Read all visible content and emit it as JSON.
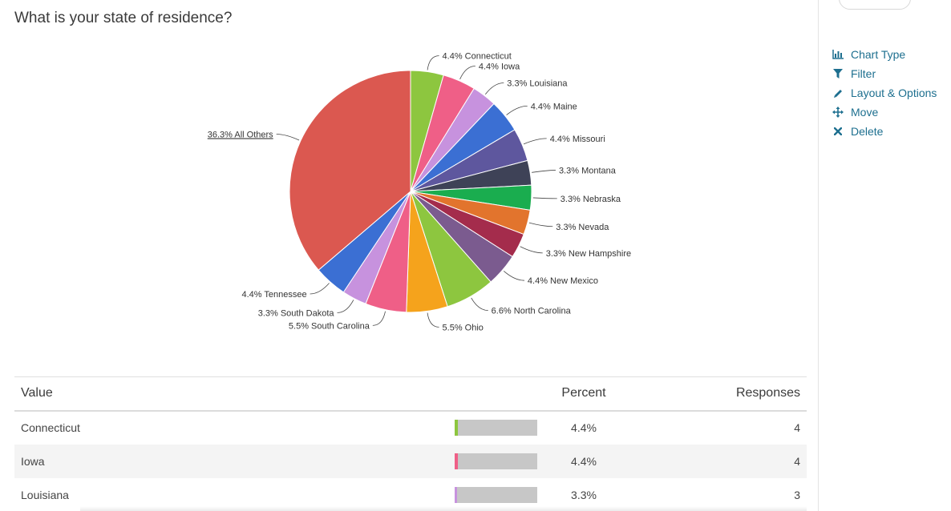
{
  "question": {
    "title": "What is your state of residence?"
  },
  "side_menu": [
    {
      "label": "Chart Type",
      "icon": "bar-chart-icon"
    },
    {
      "label": "Filter",
      "icon": "funnel-icon"
    },
    {
      "label": "Layout & Options",
      "icon": "pencil-icon"
    },
    {
      "label": "Move",
      "icon": "move-arrows-icon"
    },
    {
      "label": "Delete",
      "icon": "x-icon"
    }
  ],
  "chart_data": {
    "type": "pie",
    "title": "What is your state of residence?",
    "start": "top",
    "direction": "clockwise",
    "slices": [
      {
        "label": "Connecticut",
        "value": 4.4,
        "text": "4.4% Connecticut",
        "color": "#8dc63f"
      },
      {
        "label": "Iowa",
        "value": 4.4,
        "text": "4.4% Iowa",
        "color": "#ef5f87"
      },
      {
        "label": "Louisiana",
        "value": 3.3,
        "text": "3.3% Louisiana",
        "color": "#c792de"
      },
      {
        "label": "Maine",
        "value": 4.4,
        "text": "4.4% Maine",
        "color": "#3b6fd3"
      },
      {
        "label": "Missouri",
        "value": 4.4,
        "text": "4.4% Missouri",
        "color": "#5e579e"
      },
      {
        "label": "Montana",
        "value": 3.3,
        "text": "3.3% Montana",
        "color": "#3e4257"
      },
      {
        "label": "Nebraska",
        "value": 3.3,
        "text": "3.3% Nebraska",
        "color": "#1aad4f"
      },
      {
        "label": "Nevada",
        "value": 3.3,
        "text": "3.3% Nevada",
        "color": "#e2742d"
      },
      {
        "label": "New Hampshire",
        "value": 3.3,
        "text": "3.3% New Hampshire",
        "color": "#a42c4c"
      },
      {
        "label": "New Mexico",
        "value": 4.4,
        "text": "4.4% New Mexico",
        "color": "#7b5b8f"
      },
      {
        "label": "North Carolina",
        "value": 6.6,
        "text": "6.6% North Carolina",
        "color": "#8dc63f"
      },
      {
        "label": "Ohio",
        "value": 5.5,
        "text": "5.5% Ohio",
        "color": "#f5a31c"
      },
      {
        "label": "South Carolina",
        "value": 5.5,
        "text": "5.5% South Carolina",
        "color": "#ef5f87"
      },
      {
        "label": "South Dakota",
        "value": 3.3,
        "text": "3.3% South Dakota",
        "color": "#c792de"
      },
      {
        "label": "Tennessee",
        "value": 4.4,
        "text": "4.4% Tennessee",
        "color": "#3b6fd3"
      },
      {
        "label": "All Others",
        "value": 36.3,
        "text": "36.3% All Others",
        "color": "#db5850"
      }
    ]
  },
  "table": {
    "headers": {
      "value": "Value",
      "percent": "Percent",
      "responses": "Responses"
    },
    "rows": [
      {
        "value": "Connecticut",
        "percent": "4.4%",
        "pct_num": 4.4,
        "responses": "4",
        "color": "#8dc63f"
      },
      {
        "value": "Iowa",
        "percent": "4.4%",
        "pct_num": 4.4,
        "responses": "4",
        "color": "#ef5f87"
      },
      {
        "value": "Louisiana",
        "percent": "3.3%",
        "pct_num": 3.3,
        "responses": "3",
        "color": "#c792de"
      }
    ]
  }
}
